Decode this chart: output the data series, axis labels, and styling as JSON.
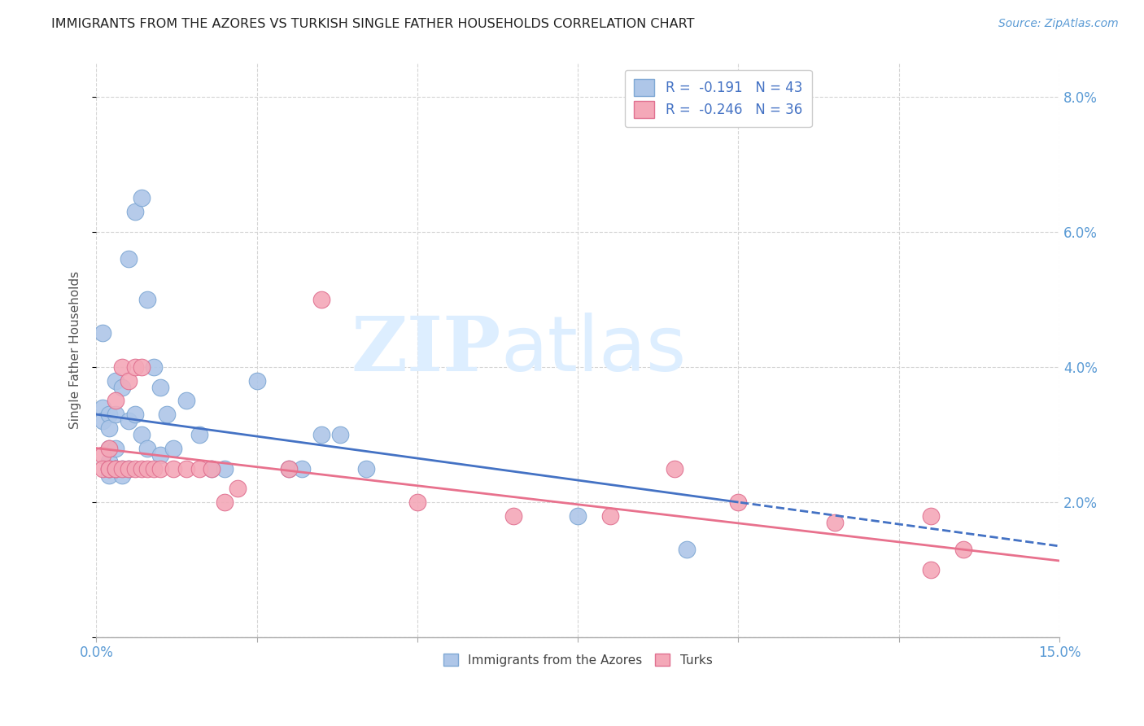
{
  "title": "IMMIGRANTS FROM THE AZORES VS TURKISH SINGLE FATHER HOUSEHOLDS CORRELATION CHART",
  "source": "Source: ZipAtlas.com",
  "ylabel": "Single Father Households",
  "legend1_label": "R =  -0.191   N = 43",
  "legend2_label": "R =  -0.246   N = 36",
  "legend1_color": "#aec6e8",
  "legend2_color": "#f4a8b8",
  "legend1_edge": "#7fa8d4",
  "legend2_edge": "#e07090",
  "trendline1_color": "#4472c4",
  "trendline2_color": "#e8718d",
  "watermark_zip": "ZIP",
  "watermark_atlas": "atlas",
  "azores_x": [
    0.001,
    0.001,
    0.001,
    0.002,
    0.002,
    0.002,
    0.002,
    0.002,
    0.002,
    0.003,
    0.003,
    0.003,
    0.003,
    0.003,
    0.004,
    0.004,
    0.004,
    0.005,
    0.005,
    0.005,
    0.006,
    0.006,
    0.007,
    0.007,
    0.008,
    0.008,
    0.009,
    0.01,
    0.01,
    0.011,
    0.012,
    0.014,
    0.016,
    0.018,
    0.02,
    0.025,
    0.03,
    0.032,
    0.035,
    0.038,
    0.042,
    0.075,
    0.092
  ],
  "azores_y": [
    0.034,
    0.032,
    0.045,
    0.033,
    0.031,
    0.028,
    0.026,
    0.024,
    0.025,
    0.038,
    0.033,
    0.028,
    0.025,
    0.025,
    0.037,
    0.025,
    0.024,
    0.056,
    0.032,
    0.025,
    0.063,
    0.033,
    0.065,
    0.03,
    0.05,
    0.028,
    0.04,
    0.037,
    0.027,
    0.033,
    0.028,
    0.035,
    0.03,
    0.025,
    0.025,
    0.038,
    0.025,
    0.025,
    0.03,
    0.03,
    0.025,
    0.018,
    0.013
  ],
  "turks_x": [
    0.001,
    0.001,
    0.002,
    0.002,
    0.002,
    0.003,
    0.003,
    0.003,
    0.004,
    0.004,
    0.005,
    0.005,
    0.006,
    0.006,
    0.007,
    0.007,
    0.008,
    0.009,
    0.01,
    0.012,
    0.014,
    0.016,
    0.018,
    0.02,
    0.022,
    0.03,
    0.035,
    0.05,
    0.065,
    0.08,
    0.09,
    0.1,
    0.115,
    0.13,
    0.13,
    0.135
  ],
  "turks_y": [
    0.027,
    0.025,
    0.028,
    0.025,
    0.025,
    0.035,
    0.025,
    0.025,
    0.04,
    0.025,
    0.038,
    0.025,
    0.04,
    0.025,
    0.04,
    0.025,
    0.025,
    0.025,
    0.025,
    0.025,
    0.025,
    0.025,
    0.025,
    0.02,
    0.022,
    0.025,
    0.05,
    0.02,
    0.018,
    0.018,
    0.025,
    0.02,
    0.017,
    0.018,
    0.01,
    0.013
  ],
  "xlim": [
    0.0,
    0.15
  ],
  "ylim": [
    0.0,
    0.085
  ],
  "xtick_vals": [
    0.0,
    0.025,
    0.05,
    0.075,
    0.1,
    0.125,
    0.15
  ],
  "xtick_labels": [
    "0.0%",
    "",
    "",
    "",
    "",
    "",
    "15.0%"
  ],
  "ytick_vals": [
    0.0,
    0.02,
    0.04,
    0.06,
    0.08
  ],
  "right_ytick_vals": [
    0.02,
    0.04,
    0.06,
    0.08
  ],
  "right_ytick_labels": [
    "2.0%",
    "4.0%",
    "6.0%",
    "8.0%"
  ],
  "background_color": "#ffffff",
  "grid_color": "#d5d5d5",
  "trendline1_solid_end": 0.1,
  "trendline1_dash_start": 0.1
}
